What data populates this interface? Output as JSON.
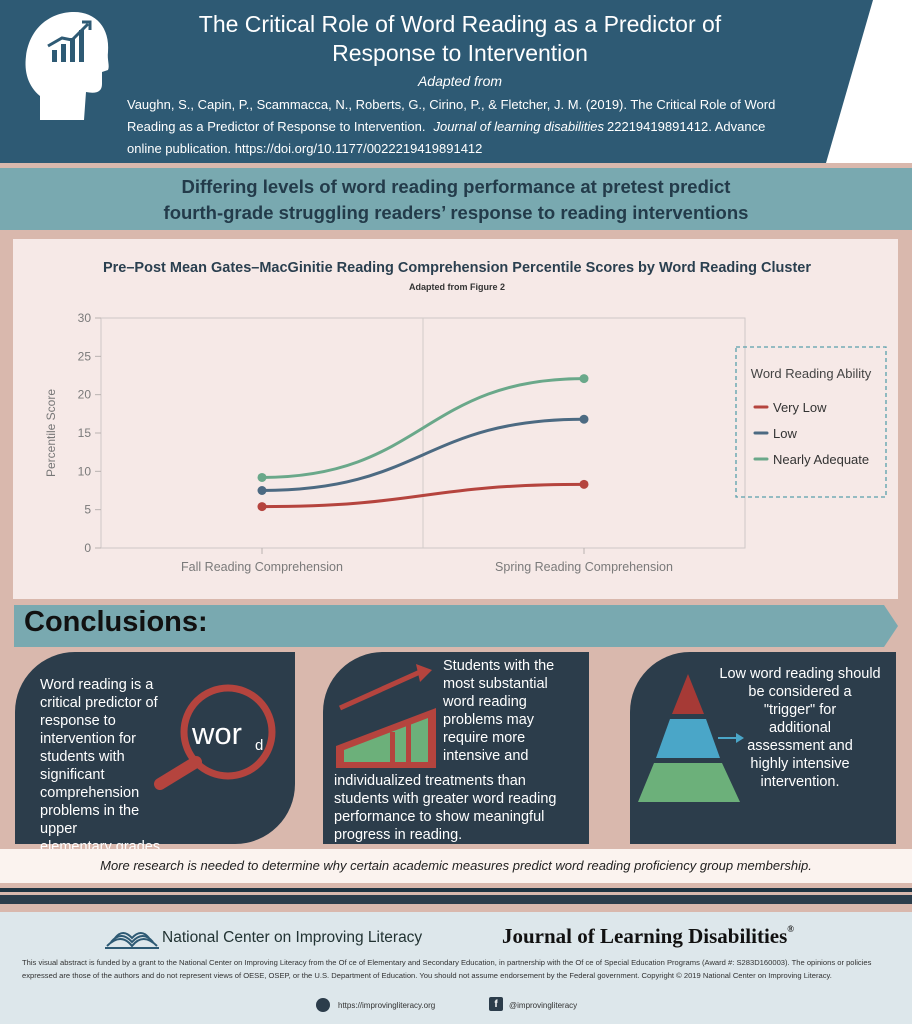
{
  "header": {
    "title": "The Critical Role of Word Reading as a Predictor of Response to Intervention",
    "adapted_from": "Adapted from",
    "citation_line1": "Vaughn, S., Capin, P., Scammacca, N., Roberts, G., Cirino, P., & Fletcher, J. M. (2019). The Critical Role of Word",
    "citation_line2_a": "Reading as a Predictor of Response to Intervention.",
    "citation_journal": "Journal of learning disabilities",
    "citation_line2_b": "22219419891412. Advance",
    "citation_line3": "online publication. https://doi.org/10.1177/0022219419891412",
    "icon": "head-growth-chart-icon"
  },
  "subtitle": "Differing levels of word reading performance at pretest predict fourth-grade struggling readers’ response to reading interventions",
  "chart_data": {
    "type": "line",
    "title": "Pre–Post Mean Gates–MacGinitie Reading Comprehension Percentile Scores by Word Reading Cluster",
    "subtitle": "Adapted from Figure 2",
    "categories": [
      "Fall Reading Comprehension",
      "Spring Reading Comprehension"
    ],
    "ylabel": "Percentile Score",
    "xlabel": "",
    "ylim": [
      0,
      30
    ],
    "yticks": [
      0,
      5,
      10,
      15,
      20,
      25,
      30
    ],
    "legend_title": "Word Reading Ability",
    "legend_position": "right",
    "series": [
      {
        "name": "Very Low",
        "values": [
          5.4,
          8.3
        ],
        "color": "#b5443e"
      },
      {
        "name": "Low",
        "values": [
          7.5,
          16.8
        ],
        "color": "#4c6a82"
      },
      {
        "name": "Nearly Adequate",
        "values": [
          9.2,
          22.1
        ],
        "color": "#6aa88a"
      }
    ]
  },
  "conclusions": {
    "title": "Conclusions:",
    "card1": {
      "lines": [
        "Word reading is a",
        "critical predictor of",
        "response to",
        "intervention for",
        "students with",
        "significant",
        "comprehension",
        "problems in the upper",
        "elementary grades."
      ],
      "graphic_word": "wor",
      "graphic_letter": "d",
      "icon": "magnifying-glass-icon"
    },
    "card2": {
      "top_lines": [
        "Students with the",
        "most substantial",
        "word reading",
        "problems may",
        "require more",
        "intensive and"
      ],
      "bottom_lines": [
        "individualized treatments than",
        "students with greater word reading",
        "performance to show meaningful",
        "progress in reading."
      ],
      "icon": "growth-bar-arrow-icon"
    },
    "card3": {
      "lines": [
        "Low word reading should",
        "be considered a",
        "\"trigger\" for",
        "additional",
        "assessment and",
        "highly intensive",
        "intervention."
      ],
      "icon": "pyramid-icon",
      "colors": {
        "top": "#a63a36",
        "middle": "#4aa6c8",
        "bottom": "#6cb07a"
      }
    }
  },
  "note": "More research is needed to determine why certain academic measures predict word reading proficiency group membership.",
  "footer": {
    "ncil_name": "National Center on Improving Literacy",
    "jld_name": "Journal of Learning Disabilities",
    "jld_mark": "®",
    "disclaimer_line1": "This visual abstract is funded by a grant to the National Center on Improving Literacy from the Of ce of Elementary and Secondary Education, in partnership with the Of ce of Special Education Programs (Award #: S283D160003). The opinions or policies",
    "disclaimer_line2": "expressed are those of the authors and do not represent views of OESE, OSEP, or the U.S. Department of Education. You should not assume endorsement by the Federal government. Copyright © 2019 National Center on Improving Literacy.",
    "website": "https://improvingliteracy.org",
    "social": "@improvingliteracy",
    "fb_letter": "f"
  }
}
